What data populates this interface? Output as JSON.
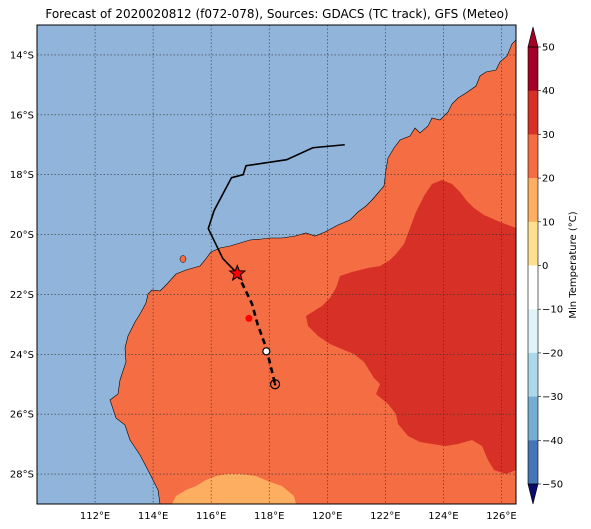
{
  "title": "Forecast of 2020020812 (f072-078), Sources: GDACS (TC track), GFS (Meteo)",
  "map": {
    "lon_range": [
      110,
      126.5
    ],
    "lat_range": [
      -29,
      -13
    ],
    "lon_ticks": [
      "112°E",
      "114°E",
      "116°E",
      "118°E",
      "120°E",
      "122°E",
      "124°E",
      "126°E"
    ],
    "lat_ticks": [
      "14°S",
      "16°S",
      "18°S",
      "20°S",
      "22°S",
      "24°S",
      "26°S",
      "28°S"
    ],
    "gridlines": "dotted",
    "colors": {
      "ocean": "#91b5da",
      "land_20_30": "#f46d43",
      "land_30_40": "#d73027",
      "land_10_20": "#fdae61"
    }
  },
  "tc_track": {
    "observed": [
      [
        120.6,
        -17.0
      ],
      [
        119.5,
        -17.1
      ],
      [
        118.6,
        -17.5
      ],
      [
        117.2,
        -17.7
      ],
      [
        117.1,
        -18.0
      ],
      [
        116.7,
        -18.1
      ],
      [
        116.1,
        -19.2
      ],
      [
        115.9,
        -19.8
      ],
      [
        116.4,
        -20.8
      ],
      [
        116.9,
        -21.3
      ]
    ],
    "current_position": [
      116.9,
      -21.3
    ],
    "forecast": [
      [
        116.9,
        -21.3
      ],
      [
        117.4,
        -22.3
      ],
      [
        117.6,
        -23.0
      ],
      [
        117.9,
        -23.8
      ],
      [
        118.2,
        -25.0
      ]
    ],
    "forecast_points": [
      [
        117.3,
        -22.8
      ],
      [
        117.9,
        -23.9
      ],
      [
        118.2,
        -25.0
      ]
    ]
  },
  "colorbar": {
    "label": "Min Temperature (°C)",
    "ticks": [
      "50",
      "40",
      "30",
      "20",
      "10",
      "0",
      "−10",
      "−20",
      "−30",
      "−40",
      "−50"
    ],
    "colors": [
      "#a50026",
      "#d73027",
      "#f46d43",
      "#fdae61",
      "#fee090",
      "#ffffbf",
      "#e0f3f8",
      "#abd9e9",
      "#74add1",
      "#4575b4",
      "#313695"
    ]
  }
}
